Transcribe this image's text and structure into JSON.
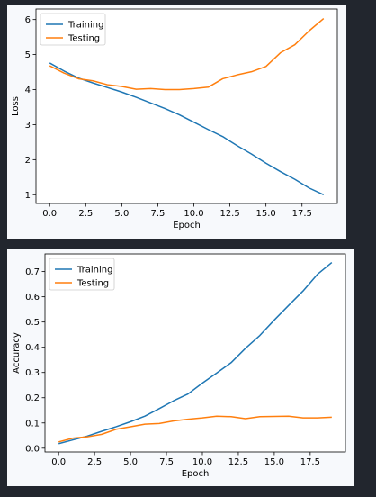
{
  "chart_data": [
    {
      "type": "line",
      "xlabel": "Epoch",
      "ylabel": "Loss",
      "xlim": [
        -0.95,
        19.95
      ],
      "ylim": [
        0.75,
        6.3
      ],
      "xticks": [
        "0.0",
        "2.5",
        "5.0",
        "7.5",
        "10.0",
        "12.5",
        "15.0",
        "17.5"
      ],
      "yticks": [
        "1",
        "2",
        "3",
        "4",
        "5",
        "6"
      ],
      "legend": "top-left",
      "grid": false,
      "x": [
        0,
        1,
        2,
        3,
        4,
        5,
        6,
        7,
        8,
        9,
        10,
        11,
        12,
        13,
        14,
        15,
        16,
        17,
        18,
        19
      ],
      "series": [
        {
          "name": "Training",
          "color": "#1f77b4",
          "values": [
            4.76,
            4.53,
            4.33,
            4.19,
            4.06,
            3.93,
            3.78,
            3.62,
            3.46,
            3.28,
            3.07,
            2.86,
            2.66,
            2.4,
            2.16,
            1.9,
            1.66,
            1.44,
            1.19,
            1.0
          ]
        },
        {
          "name": "Testing",
          "color": "#ff7f0e",
          "values": [
            4.68,
            4.47,
            4.31,
            4.25,
            4.14,
            4.09,
            4.01,
            4.03,
            4.0,
            4.0,
            4.03,
            4.07,
            4.31,
            4.42,
            4.51,
            4.66,
            5.05,
            5.28,
            5.68,
            6.03
          ]
        }
      ]
    },
    {
      "type": "line",
      "xlabel": "Epoch",
      "ylabel": "Accuracy",
      "xlim": [
        -0.95,
        19.95
      ],
      "ylim": [
        -0.015,
        0.77
      ],
      "xticks": [
        "0.0",
        "2.5",
        "5.0",
        "7.5",
        "10.0",
        "12.5",
        "15.0",
        "17.5"
      ],
      "yticks": [
        "0.0",
        "0.1",
        "0.2",
        "0.3",
        "0.4",
        "0.5",
        "0.6",
        "0.7"
      ],
      "legend": "top-left",
      "grid": false,
      "x": [
        0,
        1,
        2,
        3,
        4,
        5,
        6,
        7,
        8,
        9,
        10,
        11,
        12,
        13,
        14,
        15,
        16,
        17,
        18,
        19
      ],
      "series": [
        {
          "name": "Training",
          "color": "#1f77b4",
          "values": [
            0.018,
            0.033,
            0.048,
            0.067,
            0.085,
            0.105,
            0.127,
            0.157,
            0.188,
            0.215,
            0.258,
            0.298,
            0.339,
            0.396,
            0.447,
            0.508,
            0.566,
            0.623,
            0.689,
            0.736
          ]
        },
        {
          "name": "Testing",
          "color": "#ff7f0e",
          "values": [
            0.025,
            0.04,
            0.045,
            0.055,
            0.075,
            0.085,
            0.095,
            0.098,
            0.108,
            0.115,
            0.12,
            0.127,
            0.125,
            0.117,
            0.125,
            0.126,
            0.127,
            0.12,
            0.12,
            0.123
          ]
        }
      ]
    }
  ]
}
